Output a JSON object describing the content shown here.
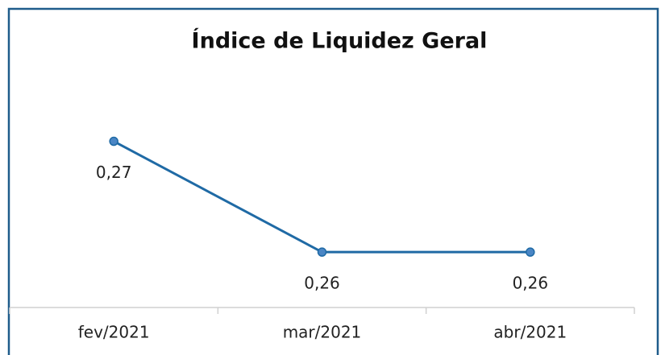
{
  "chart_data": {
    "type": "line",
    "title": "Índice de Liquidez Geral",
    "categories": [
      "fev/2021",
      "mar/2021",
      "abr/2021"
    ],
    "values": [
      0.27,
      0.26,
      0.26
    ],
    "value_labels": [
      "0,27",
      "0,26",
      "0,26"
    ],
    "color": "#1f6aa5",
    "ylim": [
      0.255,
      0.272
    ]
  }
}
